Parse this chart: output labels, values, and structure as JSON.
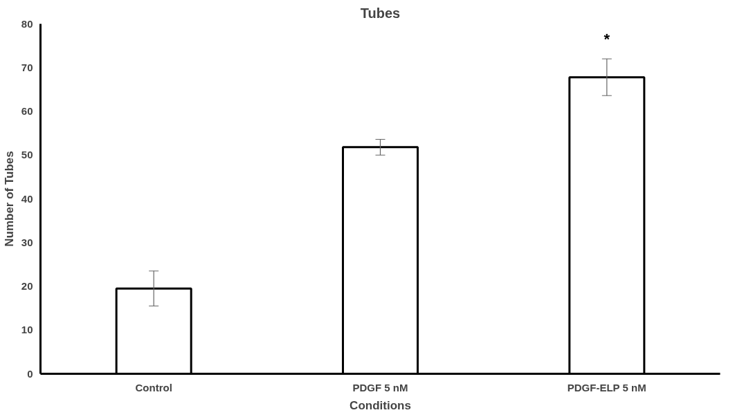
{
  "chart_data": {
    "type": "bar",
    "title": "Tubes",
    "xlabel": "Conditions",
    "ylabel": "Number of Tubes",
    "categories": [
      "Control",
      "PDGF 5 nM",
      "PDGF-ELP 5 nM"
    ],
    "values": [
      19.5,
      51.8,
      67.8
    ],
    "errors": [
      4,
      1.8,
      4.2
    ],
    "color": "#ffffff",
    "ylim": [
      0,
      80
    ],
    "yticks": [
      0,
      10,
      20,
      30,
      40,
      50,
      60,
      70,
      80
    ],
    "annotations": [
      "*"
    ],
    "grid": false
  }
}
